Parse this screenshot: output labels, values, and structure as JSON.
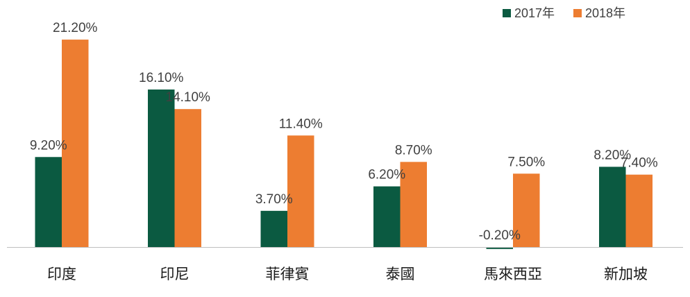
{
  "chart_data": {
    "type": "bar",
    "categories": [
      "印度",
      "印尼",
      "菲律賓",
      "泰國",
      "馬來西亞",
      "新加坡"
    ],
    "series": [
      {
        "name": "2017年",
        "color": "#0b5a41",
        "values": [
          9.2,
          16.1,
          3.7,
          6.2,
          -0.2,
          8.2
        ],
        "labels": [
          "9.20%",
          "16.10%",
          "3.70%",
          "6.20%",
          "-0.20%",
          "8.20%"
        ]
      },
      {
        "name": "2018年",
        "color": "#ed7d31",
        "values": [
          21.2,
          14.1,
          11.4,
          8.7,
          7.5,
          7.4
        ],
        "labels": [
          "21.20%",
          "14.10%",
          "11.40%",
          "8.70%",
          "7.50%",
          "7.40%"
        ]
      }
    ],
    "title": "",
    "xlabel": "",
    "ylabel": "",
    "ylim": [
      -0.5,
      22
    ],
    "grid": false,
    "legend": "top-right",
    "axis_color": "#bfbfbf"
  }
}
